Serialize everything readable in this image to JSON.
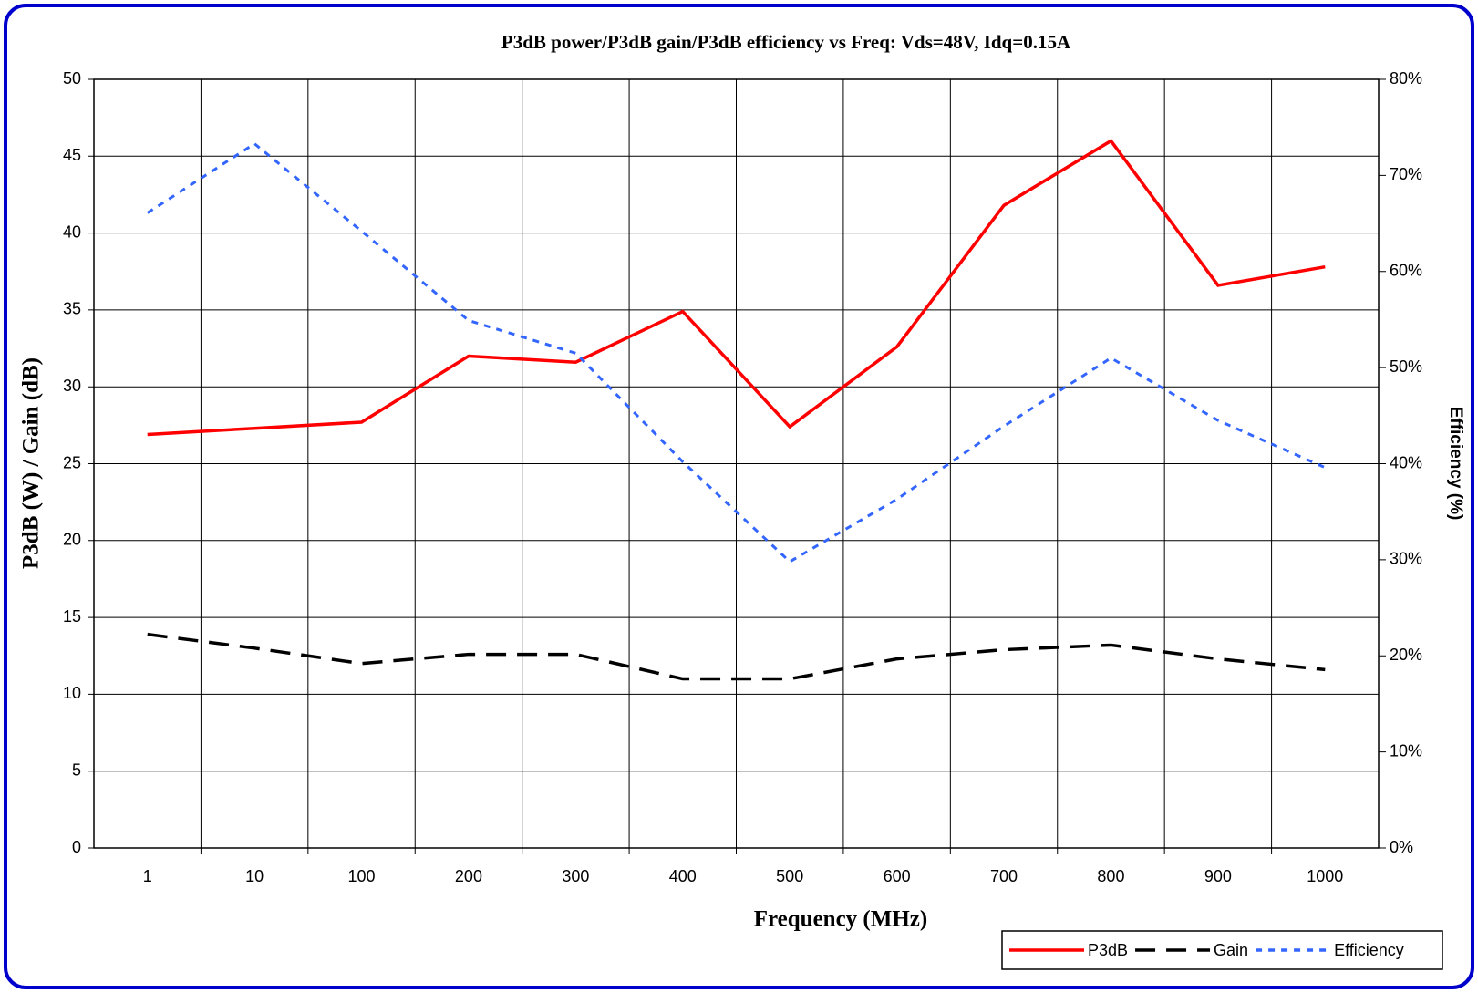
{
  "chart_data": {
    "type": "line",
    "title": "P3dB power/P3dB gain/P3dB efficiency vs Freq: Vds=48V, Idq=0.15A",
    "x_label": "Frequency (MHz)",
    "y_label": "P3dB (W) / Gain (dB)",
    "y2_label": "Efficiency (%)",
    "categories": [
      "1",
      "10",
      "100",
      "200",
      "300",
      "400",
      "500",
      "600",
      "700",
      "800",
      "900",
      "1000"
    ],
    "series": [
      {
        "name": "P3dB",
        "color": "#ff0000",
        "style": "solid",
        "values": [
          26.9,
          27.3,
          27.7,
          32.0,
          31.6,
          34.9,
          27.4,
          32.6,
          41.8,
          46.0,
          36.6,
          37.8
        ]
      },
      {
        "name": "Gain",
        "color": "#000000",
        "style": "dashed",
        "values": [
          13.9,
          13.0,
          12.0,
          12.6,
          12.6,
          11.0,
          11.0,
          12.3,
          12.9,
          13.2,
          12.3,
          11.6
        ]
      },
      {
        "name": "Efficiency",
        "color": "#3366ff",
        "style": "dotted",
        "axis": "y2",
        "values": [
          66.1,
          73.3,
          64.2,
          54.9,
          51.5,
          40.2,
          29.8,
          36.3,
          43.9,
          51.0,
          44.5,
          39.6
        ]
      }
    ],
    "ylim": [
      0,
      50
    ],
    "yticks": [
      0,
      5,
      10,
      15,
      20,
      25,
      30,
      35,
      40,
      45,
      50
    ],
    "y2lim": [
      0,
      80
    ],
    "y2ticks": [
      {
        "value": 0,
        "label": "0%"
      },
      {
        "value": 10,
        "label": "10%"
      },
      {
        "value": 20,
        "label": "20%"
      },
      {
        "value": 30,
        "label": "30%"
      },
      {
        "value": 40,
        "label": "40%"
      },
      {
        "value": 50,
        "label": "50%"
      },
      {
        "value": 60,
        "label": "60%"
      },
      {
        "value": 70,
        "label": "70%"
      },
      {
        "value": 80,
        "label": "80%"
      }
    ],
    "grid": true,
    "legend": "bottom-right"
  }
}
